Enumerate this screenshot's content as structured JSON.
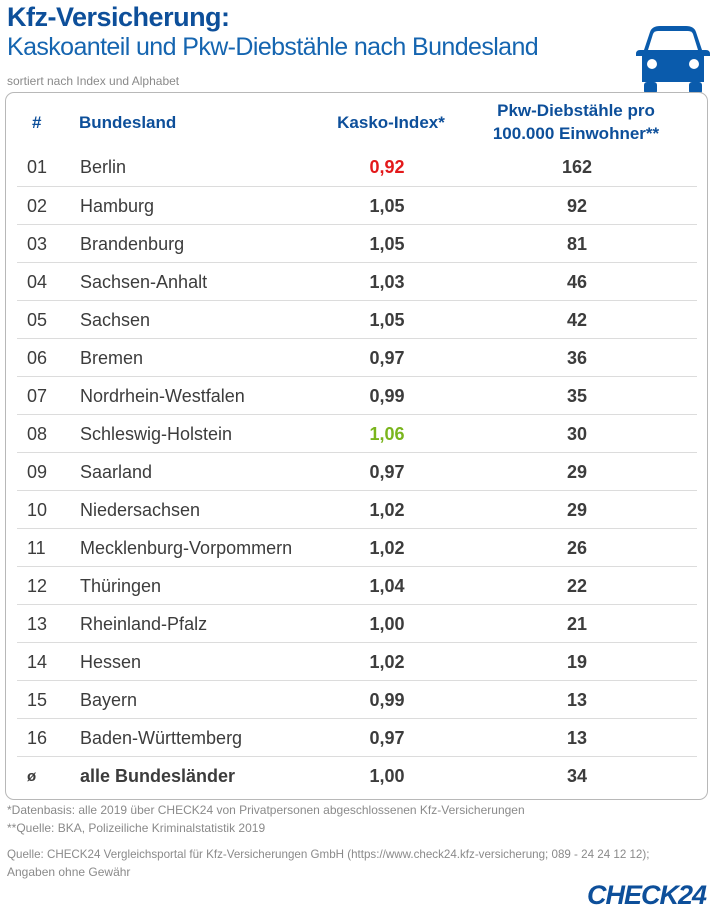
{
  "header": {
    "title": "Kfz-Versicherung:",
    "subtitle": "Kaskoanteil und Pkw-Diebstähle nach Bundesland",
    "note": "sortiert nach Index und Alphabet",
    "icon": "car-icon"
  },
  "colors": {
    "brand": "#0d4f9a",
    "lowest": "#e3191b",
    "highest": "#7ab51d",
    "text": "#3c3c3c"
  },
  "chart_data": {
    "type": "table",
    "columns": [
      "#",
      "Bundesland",
      "Kasko-Index*",
      "Pkw-Diebstähle pro",
      "100.000 Einwohner**"
    ],
    "rows": [
      {
        "num": "01",
        "name": "Berlin",
        "index": "0,92",
        "thefts": "162",
        "highlight": "lowest"
      },
      {
        "num": "02",
        "name": "Hamburg",
        "index": "1,05",
        "thefts": "92"
      },
      {
        "num": "03",
        "name": "Brandenburg",
        "index": "1,05",
        "thefts": "81"
      },
      {
        "num": "04",
        "name": "Sachsen-Anhalt",
        "index": "1,03",
        "thefts": "46"
      },
      {
        "num": "05",
        "name": "Sachsen",
        "index": "1,05",
        "thefts": "42"
      },
      {
        "num": "06",
        "name": "Bremen",
        "index": "0,97",
        "thefts": "36"
      },
      {
        "num": "07",
        "name": "Nordrhein-Westfalen",
        "index": "0,99",
        "thefts": "35"
      },
      {
        "num": "08",
        "name": "Schleswig-Holstein",
        "index": "1,06",
        "thefts": "30",
        "highlight": "highest"
      },
      {
        "num": "09",
        "name": "Saarland",
        "index": "0,97",
        "thefts": "29"
      },
      {
        "num": "10",
        "name": "Niedersachsen",
        "index": "1,02",
        "thefts": "29"
      },
      {
        "num": "11",
        "name": "Mecklenburg-Vorpommern",
        "index": "1,02",
        "thefts": "26"
      },
      {
        "num": "12",
        "name": "Thüringen",
        "index": "1,04",
        "thefts": "22"
      },
      {
        "num": "13",
        "name": "Rheinland-Pfalz",
        "index": "1,00",
        "thefts": "21"
      },
      {
        "num": "14",
        "name": "Hessen",
        "index": "1,02",
        "thefts": "19"
      },
      {
        "num": "15",
        "name": "Bayern",
        "index": "0,99",
        "thefts": "13"
      },
      {
        "num": "16",
        "name": "Baden-Württemberg",
        "index": "0,97",
        "thefts": "13"
      }
    ],
    "total": {
      "num": "ø",
      "name": "alle Bundesländer",
      "index": "1,00",
      "thefts": "34"
    }
  },
  "footer": {
    "fn1": "*Datenbasis: alle 2019 über CHECK24 von Privatpersonen abgeschlossenen Kfz-Versicherungen",
    "fn2": "**Quelle: BKA, Polizeiliche Kriminalstatistik 2019",
    "source1": "Quelle: CHECK24 Vergleichsportal für Kfz-Versicherungen GmbH (https://www.check24.kfz-versicherung; 089 - 24 24 12 12);",
    "source2": "Angaben ohne Gewähr",
    "logo": "CHECK24"
  }
}
